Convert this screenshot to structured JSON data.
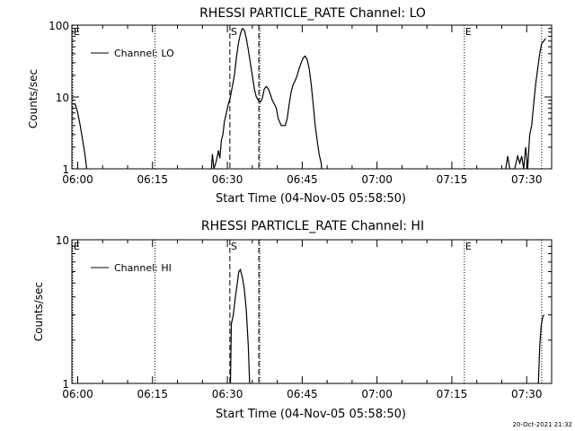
{
  "footer": {
    "timestamp": "20-Oct-2021 21:32"
  },
  "chart_data": [
    {
      "type": "line",
      "title": "RHESSI PARTICLE_RATE Channel: LO",
      "xlabel": "Start Time (04-Nov-05 05:58:50)",
      "ylabel": "Counts/sec",
      "yscale": "log",
      "xlim_minutes": [
        358.83,
        455
      ],
      "ylim": [
        1,
        100
      ],
      "x_ticks": [
        {
          "t": 360,
          "label": "06:00"
        },
        {
          "t": 375,
          "label": "06:15"
        },
        {
          "t": 390,
          "label": "06:30"
        },
        {
          "t": 405,
          "label": "06:45"
        },
        {
          "t": 420,
          "label": "07:00"
        },
        {
          "t": 435,
          "label": "07:15"
        },
        {
          "t": 450,
          "label": "07:30"
        }
      ],
      "y_ticks": [
        {
          "v": 1,
          "label": "1"
        },
        {
          "v": 10,
          "label": "10"
        },
        {
          "v": 100,
          "label": "100"
        }
      ],
      "legend": {
        "label": "Channel: LO",
        "placement": "top-left"
      },
      "markers": [
        {
          "t": 359,
          "style": "dotted",
          "label": "E"
        },
        {
          "t": 375.5,
          "style": "dotted",
          "label": ""
        },
        {
          "t": 390.5,
          "style": "dashed",
          "label": "S"
        },
        {
          "t": 396.3,
          "style": "dashed",
          "label": ""
        },
        {
          "t": 396.5,
          "style": "dotted",
          "label": ""
        },
        {
          "t": 437.5,
          "style": "dotted",
          "label": "E"
        },
        {
          "t": 453,
          "style": "dotted",
          "label": ""
        }
      ],
      "series": [
        {
          "name": "Channel: LO",
          "points": [
            [
              359.0,
              8.0
            ],
            [
              359.5,
              8.0
            ],
            [
              360.0,
              6.0
            ],
            [
              360.5,
              4.0
            ],
            [
              361.0,
              2.5
            ],
            [
              361.5,
              1.5
            ],
            [
              361.8,
              1.0
            ],
            [
              362.0,
              0.8
            ]
          ]
        },
        {
          "name": "Channel: LO",
          "points": [
            [
              386.8,
              1.0
            ],
            [
              387.0,
              1.6
            ],
            [
              387.3,
              1.0
            ],
            [
              387.8,
              1.3
            ],
            [
              388.2,
              1.8
            ],
            [
              388.5,
              1.4
            ],
            [
              388.8,
              2.5
            ],
            [
              389.1,
              3.0
            ],
            [
              389.4,
              4.5
            ],
            [
              389.8,
              6.0
            ],
            [
              390.2,
              8.0
            ],
            [
              390.6,
              10.0
            ],
            [
              391.0,
              14.0
            ],
            [
              391.4,
              20.0
            ],
            [
              391.8,
              35.0
            ],
            [
              392.2,
              55.0
            ],
            [
              392.6,
              75.0
            ],
            [
              393.0,
              90.0
            ],
            [
              393.4,
              85.0
            ],
            [
              393.8,
              65.0
            ],
            [
              394.2,
              45.0
            ],
            [
              394.6,
              30.0
            ],
            [
              395.0,
              20.0
            ],
            [
              395.4,
              13.0
            ],
            [
              395.8,
              10.0
            ],
            [
              396.2,
              9.0
            ],
            [
              396.6,
              8.5
            ],
            [
              397.0,
              9.5
            ],
            [
              397.4,
              13.0
            ],
            [
              397.8,
              14.0
            ],
            [
              398.2,
              13.0
            ],
            [
              398.6,
              11.0
            ],
            [
              399.0,
              9.0
            ],
            [
              399.4,
              8.0
            ],
            [
              399.8,
              7.0
            ],
            [
              400.2,
              5.0
            ],
            [
              400.8,
              4.0
            ],
            [
              401.6,
              4.0
            ],
            [
              402.0,
              5.0
            ],
            [
              402.4,
              8.0
            ],
            [
              402.8,
              12.0
            ],
            [
              403.2,
              15.0
            ],
            [
              403.6,
              17.0
            ],
            [
              404.0,
              20.0
            ],
            [
              404.4,
              25.0
            ],
            [
              404.8,
              30.0
            ],
            [
              405.2,
              35.0
            ],
            [
              405.6,
              37.0
            ],
            [
              406.0,
              33.0
            ],
            [
              406.4,
              25.0
            ],
            [
              406.8,
              15.0
            ],
            [
              407.2,
              8.0
            ],
            [
              407.6,
              4.0
            ],
            [
              408.0,
              2.5
            ],
            [
              408.4,
              1.6
            ],
            [
              408.8,
              1.2
            ],
            [
              409.0,
              0.8
            ]
          ]
        },
        {
          "name": "Channel: LO",
          "points": [
            [
              445.8,
              1.0
            ],
            [
              446.2,
              1.5
            ],
            [
              446.6,
              1.0
            ],
            [
              447.6,
              1.0
            ],
            [
              448.2,
              1.5
            ],
            [
              448.6,
              1.2
            ],
            [
              449.0,
              1.5
            ],
            [
              449.4,
              1.0
            ],
            [
              449.8,
              2.0
            ],
            [
              450.2,
              1.0
            ],
            [
              450.6,
              3.0
            ],
            [
              451.0,
              4.0
            ],
            [
              451.4,
              8.0
            ],
            [
              451.8,
              15.0
            ],
            [
              452.2,
              25.0
            ],
            [
              452.6,
              40.0
            ],
            [
              453.0,
              55.0
            ],
            [
              453.4,
              60.0
            ],
            [
              453.8,
              65.0
            ]
          ]
        }
      ]
    },
    {
      "type": "line",
      "title": "RHESSI PARTICLE_RATE Channel: HI",
      "xlabel": "Start Time (04-Nov-05 05:58:50)",
      "ylabel": "Counts/sec",
      "yscale": "log",
      "xlim_minutes": [
        358.83,
        455
      ],
      "ylim": [
        1,
        10
      ],
      "x_ticks": [
        {
          "t": 360,
          "label": "06:00"
        },
        {
          "t": 375,
          "label": "06:15"
        },
        {
          "t": 390,
          "label": "06:30"
        },
        {
          "t": 405,
          "label": "06:45"
        },
        {
          "t": 420,
          "label": "07:00"
        },
        {
          "t": 435,
          "label": "07:15"
        },
        {
          "t": 450,
          "label": "07:30"
        }
      ],
      "y_ticks": [
        {
          "v": 1,
          "label": "1"
        },
        {
          "v": 10,
          "label": "10"
        }
      ],
      "legend": {
        "label": "Channel: HI",
        "placement": "top-left"
      },
      "markers": [
        {
          "t": 359,
          "style": "dotted",
          "label": "E"
        },
        {
          "t": 375.5,
          "style": "dotted",
          "label": ""
        },
        {
          "t": 390.5,
          "style": "dashed",
          "label": "S"
        },
        {
          "t": 396.3,
          "style": "dashed",
          "label": ""
        },
        {
          "t": 396.5,
          "style": "dotted",
          "label": ""
        },
        {
          "t": 437.5,
          "style": "dotted",
          "label": "E"
        },
        {
          "t": 453,
          "style": "dotted",
          "label": ""
        }
      ],
      "series": [
        {
          "name": "Channel: HI",
          "points": [
            [
              390.6,
              0.9
            ],
            [
              390.8,
              2.6
            ],
            [
              391.2,
              3.0
            ],
            [
              391.6,
              4.0
            ],
            [
              392.0,
              5.0
            ],
            [
              392.3,
              6.0
            ],
            [
              392.6,
              6.2
            ],
            [
              393.0,
              5.5
            ],
            [
              393.4,
              4.5
            ],
            [
              393.8,
              3.2
            ],
            [
              394.2,
              1.8
            ],
            [
              394.5,
              0.9
            ]
          ]
        },
        {
          "name": "Channel: HI",
          "points": [
            [
              452.3,
              0.9
            ],
            [
              452.6,
              1.8
            ],
            [
              452.9,
              2.5
            ],
            [
              453.2,
              2.9
            ],
            [
              453.5,
              3.0
            ]
          ]
        }
      ]
    }
  ]
}
